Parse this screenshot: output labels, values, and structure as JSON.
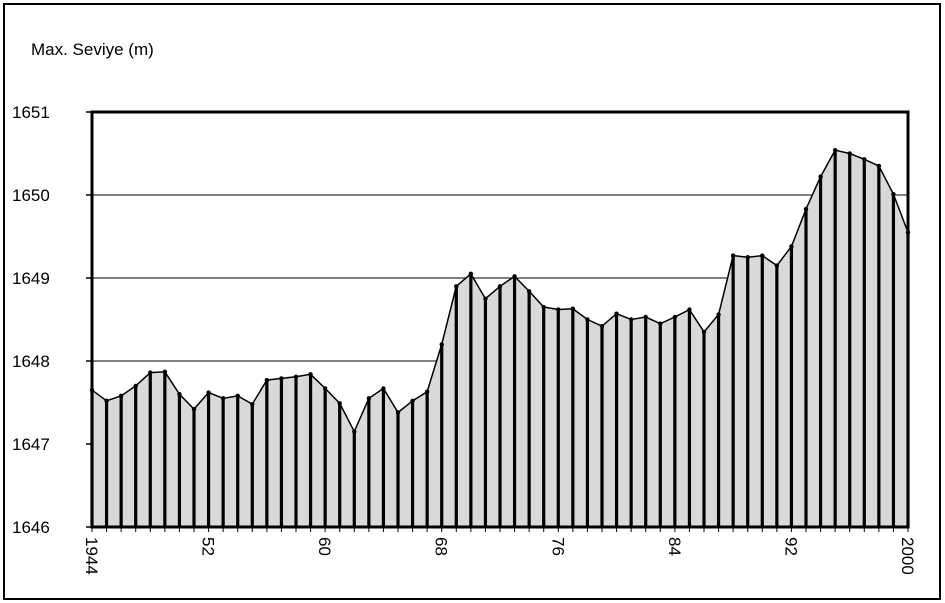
{
  "chart_data": {
    "type": "area",
    "ylabel": "Max. Seviye (m)",
    "ylim": [
      1646,
      1651
    ],
    "yticks": [
      "1646",
      "1647",
      "1648",
      "1649",
      "1650",
      "1651"
    ],
    "xlim": [
      1944,
      2000
    ],
    "xticks": [
      {
        "value": 1944,
        "label": "1944"
      },
      {
        "value": 1952,
        "label": "52"
      },
      {
        "value": 1960,
        "label": "60"
      },
      {
        "value": 1968,
        "label": "68"
      },
      {
        "value": 1976,
        "label": "76"
      },
      {
        "value": 1984,
        "label": "84"
      },
      {
        "value": 1992,
        "label": "92"
      },
      {
        "value": 2000,
        "label": "2000"
      }
    ],
    "grid": "horizontal",
    "fill_color": "#d9d9d9",
    "line_color": "#000000",
    "x": [
      1944,
      1945,
      1946,
      1947,
      1948,
      1949,
      1950,
      1951,
      1952,
      1953,
      1954,
      1955,
      1956,
      1957,
      1958,
      1959,
      1960,
      1961,
      1962,
      1963,
      1964,
      1965,
      1966,
      1967,
      1968,
      1969,
      1970,
      1971,
      1972,
      1973,
      1974,
      1975,
      1976,
      1977,
      1978,
      1979,
      1980,
      1981,
      1982,
      1983,
      1984,
      1985,
      1986,
      1987,
      1988,
      1989,
      1990,
      1991,
      1992,
      1993,
      1994,
      1995,
      1996,
      1997,
      1998,
      1999,
      2000
    ],
    "values": [
      1647.65,
      1647.52,
      1647.58,
      1647.7,
      1647.86,
      1647.87,
      1647.6,
      1647.42,
      1647.62,
      1647.55,
      1647.58,
      1647.48,
      1647.77,
      1647.79,
      1647.81,
      1647.84,
      1647.67,
      1647.49,
      1647.15,
      1647.55,
      1647.67,
      1647.38,
      1647.52,
      1647.63,
      1648.2,
      1648.9,
      1649.05,
      1648.75,
      1648.9,
      1649.02,
      1648.84,
      1648.65,
      1648.62,
      1648.63,
      1648.5,
      1648.42,
      1648.57,
      1648.5,
      1648.53,
      1648.45,
      1648.53,
      1648.62,
      1648.35,
      1648.56,
      1649.27,
      1649.25,
      1649.27,
      1649.15,
      1649.38,
      1649.83,
      1650.22,
      1650.54,
      1650.5,
      1650.43,
      1650.35,
      1650.01,
      1649.55
    ]
  }
}
